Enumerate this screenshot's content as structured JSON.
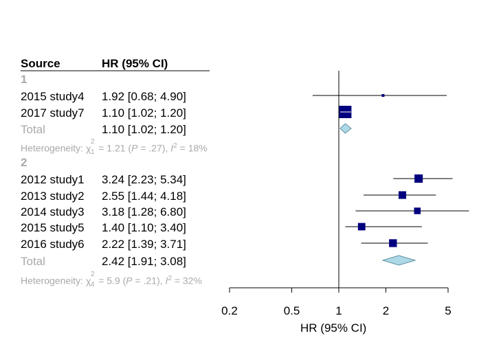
{
  "table": {
    "headers": {
      "source": "Source",
      "hr": "HR (95% CI)"
    },
    "groups": [
      {
        "label": "1",
        "studies": [
          {
            "source": "2015 study4",
            "hr_text": "1.92 [0.68; 4.90]"
          },
          {
            "source": "2017 study7",
            "hr_text": "1.10 [1.02; 1.20]"
          }
        ],
        "total": {
          "label": "Total",
          "hr_text": "1.10 [1.02; 1.20]"
        },
        "heterogeneity": {
          "prefix": "Heterogeneity: ",
          "chi": "χ",
          "df": "1",
          "sq": "2",
          "chi_value": " = 1.21 (",
          "p_label": "P",
          "p_value": " = .27), ",
          "i_label": "I",
          "i_value": " = 18%"
        }
      },
      {
        "label": "2",
        "studies": [
          {
            "source": "2012 study1",
            "hr_text": "3.24 [2.23; 5.34]"
          },
          {
            "source": "2013 study2",
            "hr_text": "2.55 [1.44; 4.18]"
          },
          {
            "source": "2014 study3",
            "hr_text": "3.18 [1.28; 6.80]"
          },
          {
            "source": "2015 study5",
            "hr_text": "1.40 [1.10; 3.40]"
          },
          {
            "source": "2016 study6",
            "hr_text": "2.22 [1.39; 3.71]"
          }
        ],
        "total": {
          "label": "Total",
          "hr_text": "2.42 [1.91; 3.08]"
        },
        "heterogeneity": {
          "prefix": "Heterogeneity: ",
          "chi": "χ",
          "df": "4",
          "sq": "2",
          "chi_value": " = 5.9 (",
          "p_label": "P",
          "p_value": " = .21), ",
          "i_label": "I",
          "i_value": " = 32%"
        }
      }
    ]
  },
  "chart_data": {
    "type": "forest",
    "scale": "log",
    "xlabel": "HR (95% CI)",
    "xticks": [
      0.2,
      0.5,
      1,
      2,
      5
    ],
    "xtick_labels": [
      "0.2",
      "0.5",
      "1",
      "2",
      "5"
    ],
    "xlim": [
      0.2,
      5
    ],
    "null_line": 1,
    "rows": [
      {
        "kind": "study",
        "label": "2015 study4",
        "hr": 1.92,
        "lower": 0.68,
        "upper": 4.9,
        "weight": 0.05
      },
      {
        "kind": "study",
        "label": "2017 study7",
        "hr": 1.1,
        "lower": 1.02,
        "upper": 1.2,
        "weight": 1.0
      },
      {
        "kind": "total",
        "label": "Total",
        "hr": 1.1,
        "lower": 1.02,
        "upper": 1.2
      },
      {
        "kind": "study",
        "label": "2012 study1",
        "hr": 3.24,
        "lower": 2.23,
        "upper": 5.34,
        "weight": 0.45
      },
      {
        "kind": "study",
        "label": "2013 study2",
        "hr": 2.55,
        "lower": 1.44,
        "upper": 4.18,
        "weight": 0.38
      },
      {
        "kind": "study",
        "label": "2014 study3",
        "hr": 3.18,
        "lower": 1.28,
        "upper": 6.8,
        "weight": 0.28
      },
      {
        "kind": "study",
        "label": "2015 study5",
        "hr": 1.4,
        "lower": 1.1,
        "upper": 3.4,
        "weight": 0.36
      },
      {
        "kind": "study",
        "label": "2016 study6",
        "hr": 2.22,
        "lower": 1.39,
        "upper": 3.71,
        "weight": 0.4
      },
      {
        "kind": "total",
        "label": "Total",
        "hr": 2.42,
        "lower": 1.91,
        "upper": 3.08
      }
    ],
    "colors": {
      "marker": "#00007f",
      "diamond_fill": "#add8e6",
      "diamond_stroke": "#5f8fa0",
      "ci_line": "#000000",
      "axis": "#000000"
    }
  }
}
